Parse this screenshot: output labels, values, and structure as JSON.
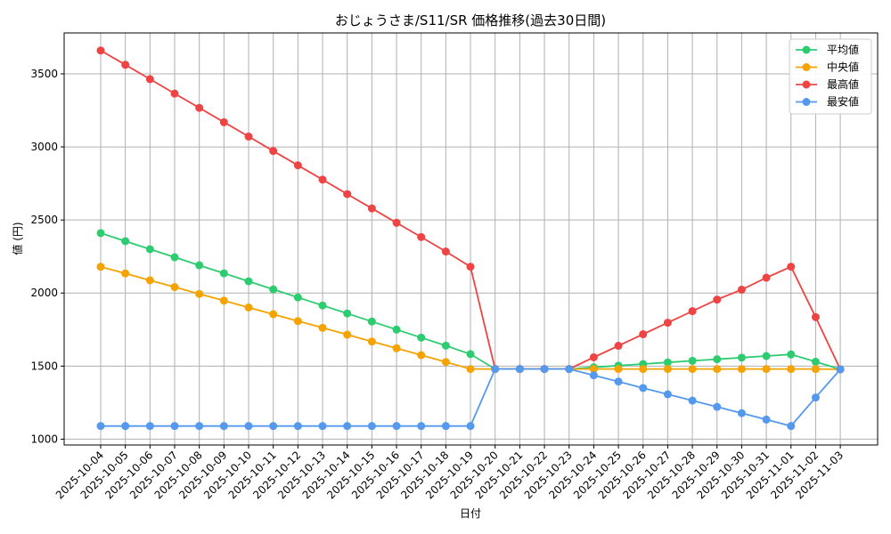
{
  "chart_data": {
    "type": "line",
    "title": "おじょうさま/S11/SR 価格推移(過去30日間)",
    "xlabel": "日付",
    "ylabel": "値 (円)",
    "ylim": [
      960,
      3780
    ],
    "yticks": [
      1000,
      1500,
      2000,
      2500,
      3000,
      3500
    ],
    "grid": true,
    "legend_position": "top-right",
    "x": [
      "2025-10-04",
      "2025-10-05",
      "2025-10-06",
      "2025-10-07",
      "2025-10-08",
      "2025-10-09",
      "2025-10-10",
      "2025-10-11",
      "2025-10-12",
      "2025-10-13",
      "2025-10-14",
      "2025-10-15",
      "2025-10-16",
      "2025-10-17",
      "2025-10-18",
      "2025-10-19",
      "2025-10-20",
      "2025-10-21",
      "2025-10-22",
      "2025-10-23",
      "2025-10-24",
      "2025-10-25",
      "2025-10-26",
      "2025-10-27",
      "2025-10-28",
      "2025-10-29",
      "2025-10-30",
      "2025-10-31",
      "2025-11-01",
      "2025-11-02",
      "2025-11-03"
    ],
    "series": [
      {
        "name": "平均値",
        "color": "#2ecc71",
        "values": [
          2410,
          2355,
          2300,
          2245,
          2190,
          2135,
          2080,
          2025,
          1970,
          1915,
          1860,
          1805,
          1750,
          1695,
          1640,
          1582,
          1480,
          1480,
          1480,
          1480,
          1492,
          1503,
          1514,
          1525,
          1536,
          1547,
          1558,
          1569,
          1580,
          1530,
          1478
        ]
      },
      {
        "name": "中央値",
        "color": "#f5a300",
        "values": [
          2180,
          2134,
          2087,
          2041,
          1994,
          1948,
          1901,
          1855,
          1808,
          1762,
          1715,
          1668,
          1622,
          1575,
          1528,
          1480,
          1480,
          1480,
          1480,
          1480,
          1480,
          1480,
          1480,
          1480,
          1480,
          1480,
          1480,
          1480,
          1480,
          1480,
          1478
        ]
      },
      {
        "name": "最高値",
        "color": "#ef4444",
        "values": [
          3660,
          3562,
          3464,
          3365,
          3267,
          3169,
          3071,
          2972,
          2874,
          2776,
          2677,
          2579,
          2481,
          2383,
          2284,
          2180,
          1480,
          1480,
          1480,
          1480,
          1560,
          1639,
          1718,
          1797,
          1876,
          1955,
          2023,
          2105,
          2180,
          1835,
          1478
        ]
      },
      {
        "name": "最安値",
        "color": "#5599ee",
        "values": [
          1090,
          1090,
          1090,
          1090,
          1090,
          1090,
          1090,
          1090,
          1090,
          1090,
          1090,
          1090,
          1090,
          1090,
          1090,
          1090,
          1480,
          1480,
          1480,
          1480,
          1437,
          1394,
          1350,
          1307,
          1264,
          1221,
          1178,
          1134,
          1090,
          1285,
          1478
        ]
      }
    ]
  }
}
